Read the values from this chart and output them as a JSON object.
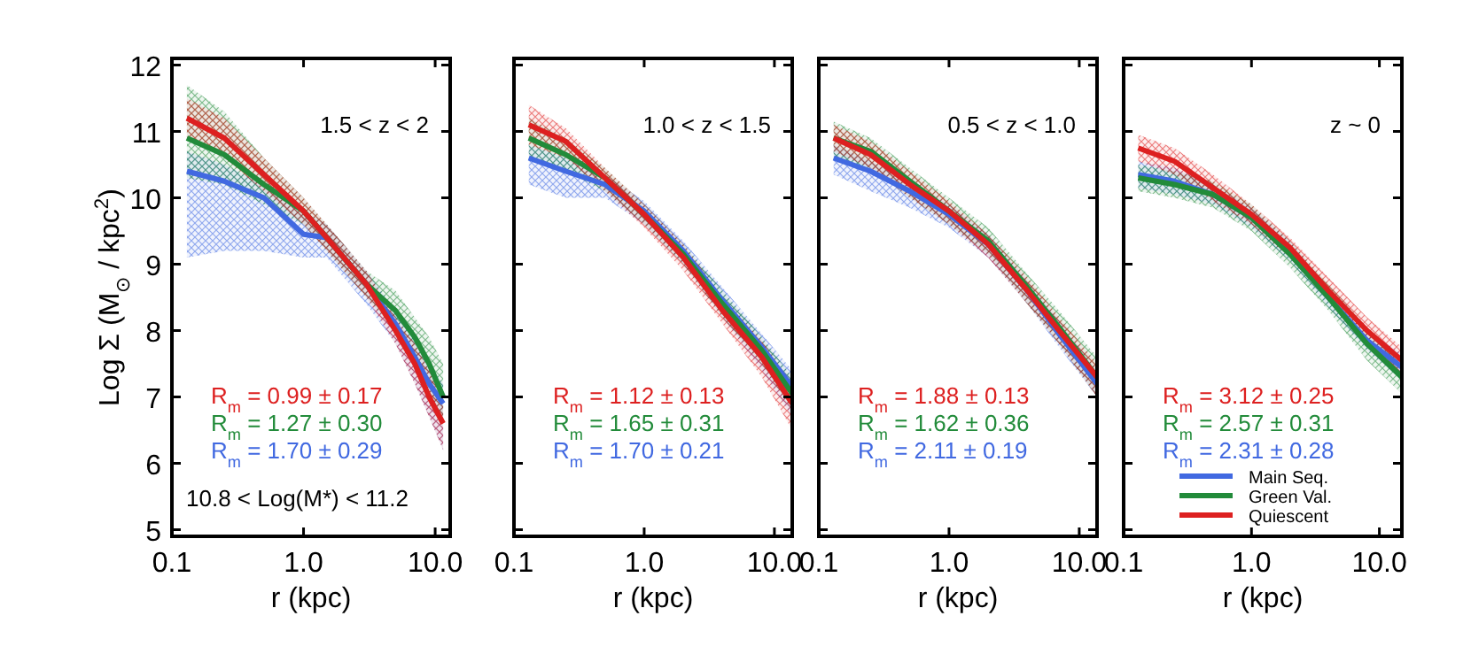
{
  "chart_data": [
    {
      "type": "line",
      "title": "1.5 < z < 2",
      "xlabel": "r (kpc)",
      "ylabel": "Log Σ (M$_{⊙}$ / kpc$^{2}$)",
      "log": "x",
      "xlim": [
        0.1,
        13
      ],
      "ylim": [
        4.9,
        12.1
      ],
      "xticks": [
        {
          "value": 0.1,
          "label": "0.1"
        },
        {
          "value": 1,
          "label": "1.0"
        },
        {
          "value": 10,
          "label": "10.0"
        }
      ],
      "yticks": [
        5,
        6,
        7,
        8,
        9,
        10,
        11,
        12
      ],
      "grid": false,
      "legend": false,
      "x": [
        0.13,
        0.25,
        0.5,
        1,
        1.5,
        3,
        5,
        7,
        9,
        11.5
      ],
      "series": [
        {
          "color": "#dd2020",
          "values": [
            11.2,
            10.9,
            10.35,
            9.8,
            9.4,
            8.7,
            8.0,
            7.5,
            7.0,
            6.6
          ],
          "lower": [
            10.9,
            10.6,
            10.1,
            9.6,
            9.2,
            8.5,
            7.8,
            7.2,
            6.7,
            6.2
          ],
          "upper": [
            11.5,
            11.2,
            10.6,
            10.0,
            9.6,
            8.9,
            8.2,
            7.8,
            7.4,
            7.0
          ]
        },
        {
          "color": "#228b3a",
          "values": [
            10.9,
            10.65,
            10.2,
            9.8,
            9.4,
            8.7,
            8.3,
            7.9,
            7.5,
            7.0
          ],
          "lower": [
            10.3,
            10.2,
            9.9,
            9.6,
            9.2,
            8.5,
            8.0,
            7.5,
            7.1,
            6.6
          ],
          "upper": [
            11.7,
            11.3,
            10.6,
            10.0,
            9.6,
            8.9,
            8.6,
            8.2,
            7.9,
            7.5
          ]
        },
        {
          "color": "#4169e1",
          "values": [
            10.4,
            10.25,
            10.0,
            9.45,
            9.4,
            8.7,
            8.1,
            7.6,
            7.2,
            6.9
          ],
          "lower": [
            9.1,
            9.2,
            9.2,
            9.1,
            9.1,
            8.4,
            7.8,
            7.2,
            6.7,
            6.2
          ],
          "upper": [
            10.7,
            10.5,
            10.2,
            9.8,
            9.6,
            8.9,
            8.3,
            7.9,
            7.5,
            7.2
          ]
        }
      ],
      "annotations": [
        "R$_{m}$ = 0.99 ± 0.17",
        "R$_{m}$ = 1.27 ± 0.30",
        "R$_{m}$ = 1.70 ± 0.29",
        "10.8 < Log(M*) < 11.2"
      ]
    },
    {
      "type": "line",
      "title": "1.0 < z < 1.5",
      "xlabel": "r (kpc)",
      "log": "x",
      "xlim": [
        0.1,
        13.7
      ],
      "ylim": [
        4.9,
        12.1
      ],
      "tick_labels": "x",
      "xticks": [
        {
          "value": 0.1,
          "label": "0.1"
        },
        {
          "value": 1,
          "label": "1.0"
        },
        {
          "value": 10,
          "label": "10.0"
        }
      ],
      "yticks": [
        5,
        6,
        7,
        8,
        9,
        10,
        11,
        12
      ],
      "grid": false,
      "legend": false,
      "x": [
        0.13,
        0.25,
        0.5,
        1,
        2,
        4,
        8,
        13.7
      ],
      "series": [
        {
          "color": "#dd2020",
          "values": [
            11.1,
            10.85,
            10.3,
            9.75,
            9.1,
            8.3,
            7.6,
            6.9
          ],
          "lower": [
            10.8,
            10.6,
            10.1,
            9.55,
            8.9,
            8.1,
            7.3,
            6.5
          ],
          "upper": [
            11.4,
            11.05,
            10.45,
            9.9,
            9.3,
            8.5,
            7.85,
            7.2
          ]
        },
        {
          "color": "#228b3a",
          "values": [
            10.9,
            10.65,
            10.3,
            9.75,
            9.15,
            8.4,
            7.7,
            7.05
          ],
          "lower": [
            10.6,
            10.4,
            10.1,
            9.6,
            9.0,
            8.2,
            7.5,
            6.8
          ],
          "upper": [
            11.2,
            10.9,
            10.45,
            9.9,
            9.3,
            8.6,
            7.9,
            7.3
          ]
        },
        {
          "color": "#4169e1",
          "values": [
            10.6,
            10.4,
            10.2,
            9.8,
            9.2,
            8.45,
            7.75,
            7.15
          ],
          "lower": [
            10.2,
            10.0,
            10.0,
            9.6,
            9.0,
            8.2,
            7.4,
            6.7
          ],
          "upper": [
            10.8,
            10.6,
            10.35,
            9.95,
            9.35,
            8.65,
            7.95,
            7.4
          ]
        }
      ],
      "annotations": [
        "R$_{m}$ = 1.12 ± 0.13",
        "R$_{m}$ = 1.65 ± 0.31",
        "R$_{m}$ = 1.70 ± 0.21"
      ]
    },
    {
      "type": "line",
      "title": "0.5 < z < 1.0",
      "xlabel": "r (kpc)",
      "log": "x",
      "xlim": [
        0.1,
        13.7
      ],
      "ylim": [
        4.9,
        12.1
      ],
      "tick_labels": "x",
      "xticks": [
        {
          "value": 0.1,
          "label": "0.1"
        },
        {
          "value": 1,
          "label": "1.0"
        },
        {
          "value": 10,
          "label": "10.0"
        }
      ],
      "yticks": [
        5,
        6,
        7,
        8,
        9,
        10,
        11,
        12
      ],
      "grid": false,
      "legend": false,
      "x": [
        0.13,
        0.25,
        0.5,
        1,
        2,
        4,
        7,
        13.7
      ],
      "series": [
        {
          "color": "#dd2020",
          "values": [
            10.9,
            10.65,
            10.2,
            9.8,
            9.3,
            8.6,
            8.0,
            7.3
          ],
          "lower": [
            10.7,
            10.45,
            10.0,
            9.6,
            9.1,
            8.4,
            7.8,
            7.0
          ],
          "upper": [
            11.1,
            10.85,
            10.4,
            9.95,
            9.45,
            8.8,
            8.2,
            7.5
          ]
        },
        {
          "color": "#228b3a",
          "values": [
            10.9,
            10.7,
            10.25,
            9.8,
            9.35,
            8.65,
            8.05,
            7.3
          ],
          "lower": [
            10.6,
            10.45,
            10.0,
            9.6,
            9.15,
            8.4,
            7.8,
            7.0
          ],
          "upper": [
            11.15,
            10.9,
            10.45,
            10.0,
            9.55,
            8.85,
            8.3,
            7.6
          ]
        },
        {
          "color": "#4169e1",
          "values": [
            10.6,
            10.4,
            10.1,
            9.75,
            9.3,
            8.6,
            7.95,
            7.2
          ],
          "lower": [
            10.35,
            10.1,
            9.85,
            9.55,
            9.1,
            8.4,
            7.75,
            7.0
          ],
          "upper": [
            10.8,
            10.55,
            10.25,
            9.9,
            9.45,
            8.75,
            8.15,
            7.4
          ]
        }
      ],
      "annotations": [
        "R$_{m}$ = 1.88 ± 0.13",
        "R$_{m}$ = 1.62 ± 0.36",
        "R$_{m}$ = 2.11 ± 0.19"
      ]
    },
    {
      "type": "line",
      "title": "z ~ 0",
      "xlabel": "r (kpc)",
      "log": "x",
      "xlim": [
        0.1,
        15
      ],
      "ylim": [
        4.9,
        12.1
      ],
      "tick_labels": "x",
      "xticks": [
        {
          "value": 0.1,
          "label": "0.1"
        },
        {
          "value": 1,
          "label": "1.0"
        },
        {
          "value": 10,
          "label": "10.0"
        }
      ],
      "yticks": [
        5,
        6,
        7,
        8,
        9,
        10,
        11,
        12
      ],
      "grid": false,
      "legend": "bottom",
      "x": [
        0.13,
        0.25,
        0.5,
        1,
        2,
        4,
        8,
        15
      ],
      "series": [
        {
          "name": "Quiescent",
          "color": "#dd2020",
          "values": [
            10.75,
            10.55,
            10.15,
            9.75,
            9.25,
            8.6,
            8.0,
            7.55
          ],
          "lower": [
            10.55,
            10.35,
            9.95,
            9.6,
            9.1,
            8.45,
            7.85,
            7.35
          ],
          "upper": [
            10.95,
            10.75,
            10.35,
            9.9,
            9.4,
            8.8,
            8.2,
            7.75
          ]
        },
        {
          "name": "Green Val.",
          "color": "#228b3a",
          "values": [
            10.3,
            10.2,
            10.05,
            9.7,
            9.15,
            8.5,
            7.8,
            7.3
          ],
          "lower": [
            10.1,
            10.0,
            9.85,
            9.5,
            8.95,
            8.3,
            7.55,
            7.05
          ],
          "upper": [
            10.5,
            10.4,
            10.25,
            9.9,
            9.35,
            8.7,
            8.05,
            7.55
          ]
        },
        {
          "name": "Main Seq.",
          "color": "#4169e1",
          "values": [
            10.35,
            10.25,
            10.05,
            9.7,
            9.2,
            8.5,
            7.85,
            7.45
          ],
          "lower": [
            10.15,
            10.05,
            9.9,
            9.55,
            9.05,
            8.35,
            7.7,
            7.25
          ],
          "upper": [
            10.55,
            10.45,
            10.2,
            9.85,
            9.35,
            8.65,
            8.0,
            7.65
          ]
        }
      ],
      "annotations": [
        "R$_{m}$ = 3.12 ± 0.25",
        "R$_{m}$ = 2.57 ± 0.31",
        "R$_{m}$ = 2.31 ± 0.28"
      ]
    }
  ]
}
